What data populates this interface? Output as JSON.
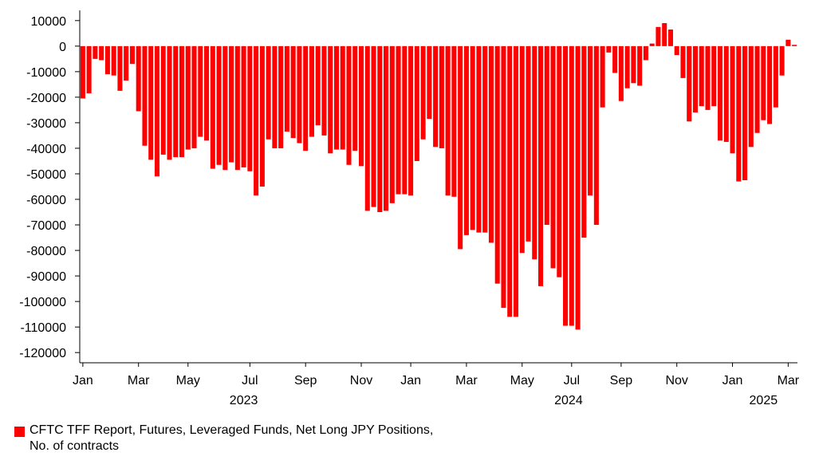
{
  "chart_data": {
    "type": "bar",
    "categories": [
      "Jan",
      null,
      null,
      null,
      null,
      null,
      null,
      null,
      null,
      "Mar",
      null,
      null,
      null,
      null,
      null,
      null,
      null,
      "May",
      null,
      null,
      null,
      null,
      null,
      null,
      null,
      null,
      null,
      "Jul",
      null,
      null,
      null,
      null,
      null,
      null,
      null,
      null,
      "Sep",
      null,
      null,
      null,
      null,
      null,
      null,
      null,
      null,
      "Nov",
      null,
      null,
      null,
      null,
      null,
      null,
      null,
      "Jan",
      null,
      null,
      null,
      null,
      null,
      null,
      null,
      null,
      "Mar",
      null,
      null,
      null,
      null,
      null,
      null,
      null,
      null,
      "May",
      null,
      null,
      null,
      null,
      null,
      null,
      null,
      "Jul",
      null,
      null,
      null,
      null,
      null,
      null,
      null,
      "Sep",
      null,
      null,
      null,
      null,
      null,
      null,
      null,
      null,
      "Nov",
      null,
      null,
      null,
      null,
      null,
      null,
      null,
      null,
      "Jan",
      null,
      null,
      null,
      null,
      null,
      null,
      null,
      null,
      "Mar",
      null
    ],
    "years": [
      "2023",
      "2024",
      "2025"
    ],
    "series": [
      {
        "name": "CFTC TFF Report, Futures, Leveraged Funds, Net Long JPY Positions, No. of contracts",
        "color": "#ff0000",
        "values": [
          -20500,
          -18500,
          -5000,
          -5500,
          -11000,
          -11500,
          -17500,
          -13500,
          -7000,
          -25500,
          -39000,
          -44500,
          -51000,
          -42500,
          -44500,
          -43500,
          -43500,
          -40500,
          -40000,
          -35500,
          -37000,
          -48000,
          -46500,
          -48500,
          -45500,
          -48500,
          -47500,
          -49000,
          -58500,
          -55000,
          -36500,
          -40000,
          -40000,
          -33500,
          -36000,
          -38000,
          -41000,
          -35500,
          -31000,
          -35000,
          -42000,
          -40500,
          -40500,
          -46500,
          -41000,
          -47000,
          -64500,
          -63000,
          -65000,
          -64500,
          -61500,
          -58000,
          -58000,
          -58500,
          -45000,
          -36500,
          -28500,
          -39500,
          -40000,
          -58500,
          -59000,
          -79500,
          -74000,
          -72000,
          -73000,
          -73000,
          -77000,
          -93000,
          -102500,
          -106000,
          -106000,
          -81000,
          -76500,
          -83500,
          -94000,
          -70000,
          -87000,
          -90500,
          -109500,
          -109500,
          -111000,
          -75000,
          -58500,
          -70000,
          -24000,
          -2500,
          -10500,
          -21500,
          -16500,
          -14500,
          -15500,
          -5500,
          1000,
          7500,
          9000,
          6500,
          -3500,
          -12500,
          -29500,
          -26000,
          -23500,
          -25000,
          -23500,
          -37000,
          -37500,
          -42000,
          -53000,
          -52500,
          -39500,
          -34000,
          -29000,
          -30500,
          -24000,
          -11500,
          2500,
          500
        ]
      }
    ],
    "ylim": [
      -124000,
      14000
    ],
    "yticks": [
      10000,
      0,
      -10000,
      -20000,
      -30000,
      -40000,
      -50000,
      -60000,
      -70000,
      -80000,
      -90000,
      -100000,
      -110000,
      -120000
    ]
  }
}
